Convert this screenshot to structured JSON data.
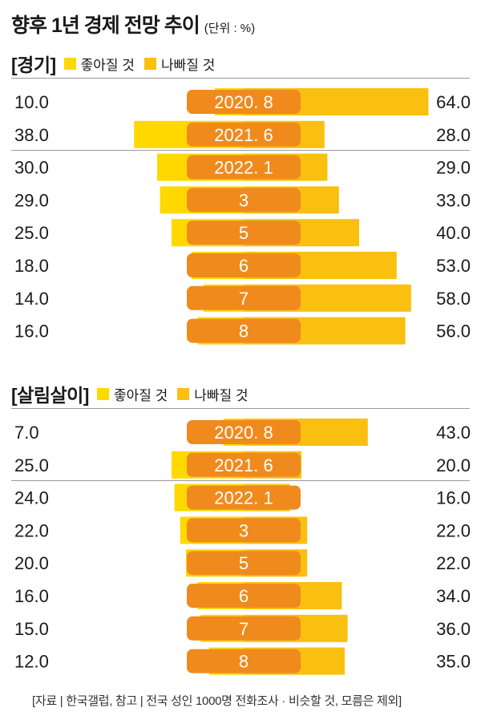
{
  "title": "향후 1년 경제 전망 추이",
  "unit": "(단위 : %)",
  "legend": {
    "good": "좋아질 것",
    "bad": "나빠질 것"
  },
  "colors": {
    "good": "#ffd800",
    "bad": "#f9c010",
    "label_box": "#f08a1d",
    "label_text": "#ffffff"
  },
  "source": "[자료 | 한국갤럽, 참고 | 전국 성인 1000명 전화조사 · 비슷할 것, 모름은 제외]",
  "chart_data": [
    {
      "type": "bar",
      "title": "[경기]",
      "categories": [
        "2020. 8",
        "2021. 6",
        "2022. 1",
        "3",
        "5",
        "6",
        "7",
        "8"
      ],
      "series": [
        {
          "name": "좋아질 것",
          "values": [
            10.0,
            38.0,
            30.0,
            29.0,
            25.0,
            18.0,
            14.0,
            16.0
          ]
        },
        {
          "name": "나빠질 것",
          "values": [
            64.0,
            28.0,
            29.0,
            33.0,
            40.0,
            53.0,
            58.0,
            56.0
          ]
        }
      ],
      "value_labels": {
        "good": [
          "10.0",
          "38.0",
          "30.0",
          "29.0",
          "25.0",
          "18.0",
          "14.0",
          "16.0"
        ],
        "bad": [
          "64.0",
          "28.0",
          "29.0",
          "33.0",
          "40.0",
          "53.0",
          "58.0",
          "56.0"
        ]
      }
    },
    {
      "type": "bar",
      "title": "[살림살이]",
      "categories": [
        "2020. 8",
        "2021. 6",
        "2022. 1",
        "3",
        "5",
        "6",
        "7",
        "8"
      ],
      "series": [
        {
          "name": "좋아질 것",
          "values": [
            7.0,
            25.0,
            24.0,
            22.0,
            20.0,
            16.0,
            15.0,
            12.0
          ]
        },
        {
          "name": "나빠질 것",
          "values": [
            43.0,
            20.0,
            16.0,
            22.0,
            22.0,
            34.0,
            36.0,
            35.0
          ]
        }
      ],
      "value_labels": {
        "good": [
          "7.0",
          "25.0",
          "24.0",
          "22.0",
          "20.0",
          "16.0",
          "15.0",
          "12.0"
        ],
        "bad": [
          "43.0",
          "20.0",
          "16.0",
          "22.0",
          "22.0",
          "34.0",
          "36.0",
          "35.0"
        ]
      }
    }
  ]
}
